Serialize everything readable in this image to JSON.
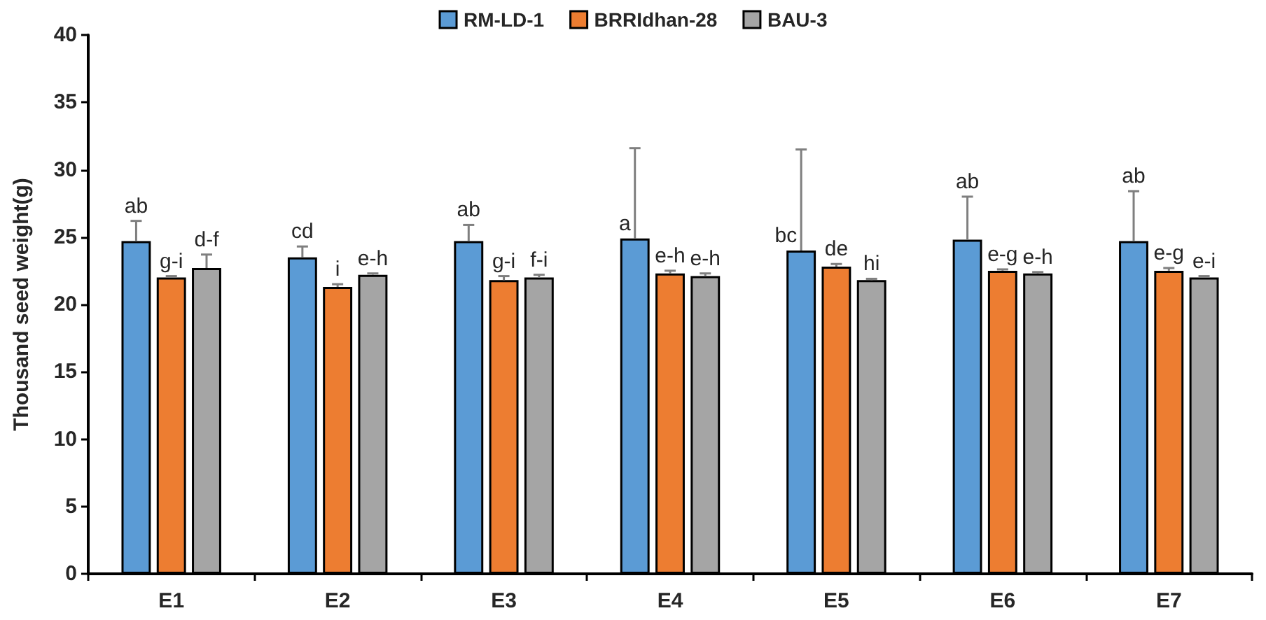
{
  "chart_data": {
    "type": "bar",
    "ylabel": "Thousand seed weight(g)",
    "categories": [
      "E1",
      "E2",
      "E3",
      "E4",
      "E5",
      "E6",
      "E7"
    ],
    "series": [
      {
        "name": "RM-LD-1",
        "color": "#5b9bd5",
        "values": [
          24.7,
          23.5,
          24.7,
          24.9,
          24.0,
          24.8,
          24.7
        ],
        "errors": [
          [
            24.7,
            26.2
          ],
          [
            23.5,
            24.3
          ],
          [
            24.7,
            25.9
          ],
          [
            24.9,
            31.6
          ],
          [
            24.0,
            31.5
          ],
          [
            24.8,
            28.0
          ],
          [
            24.7,
            28.4
          ]
        ],
        "value_labels": [
          "ab",
          "cd",
          "ab",
          "a",
          "bc",
          "ab",
          "ab"
        ]
      },
      {
        "name": "BRRIdhan-28",
        "color": "#ed7d31",
        "values": [
          22.0,
          21.3,
          21.8,
          22.3,
          22.8,
          22.5,
          22.5
        ],
        "errors": [
          [
            22.0,
            22.1
          ],
          [
            21.3,
            21.5
          ],
          [
            21.8,
            22.1
          ],
          [
            22.3,
            22.5
          ],
          [
            22.8,
            23.0
          ],
          [
            22.5,
            22.6
          ],
          [
            22.5,
            22.7
          ]
        ],
        "value_labels": [
          "g-i",
          "i",
          "g-i",
          "e-h",
          "de",
          "e-g",
          "e-g"
        ]
      },
      {
        "name": "BAU-3",
        "color": "#a5a5a5",
        "values": [
          22.7,
          22.2,
          22.0,
          22.1,
          21.8,
          22.3,
          22.0
        ],
        "errors": [
          [
            22.7,
            23.7
          ],
          [
            22.2,
            22.3
          ],
          [
            22.0,
            22.2
          ],
          [
            22.1,
            22.3
          ],
          [
            21.8,
            21.9
          ],
          [
            22.3,
            22.4
          ],
          [
            22.0,
            22.1
          ]
        ],
        "value_labels": [
          "d-f",
          "e-h",
          "f-i",
          "e-h",
          "hi",
          "e-h",
          "e-i"
        ]
      }
    ],
    "ylim": [
      0,
      40
    ],
    "yticks": [
      0,
      5,
      10,
      15,
      20,
      25,
      30,
      35,
      40
    ],
    "grid": false,
    "legend": "top"
  }
}
